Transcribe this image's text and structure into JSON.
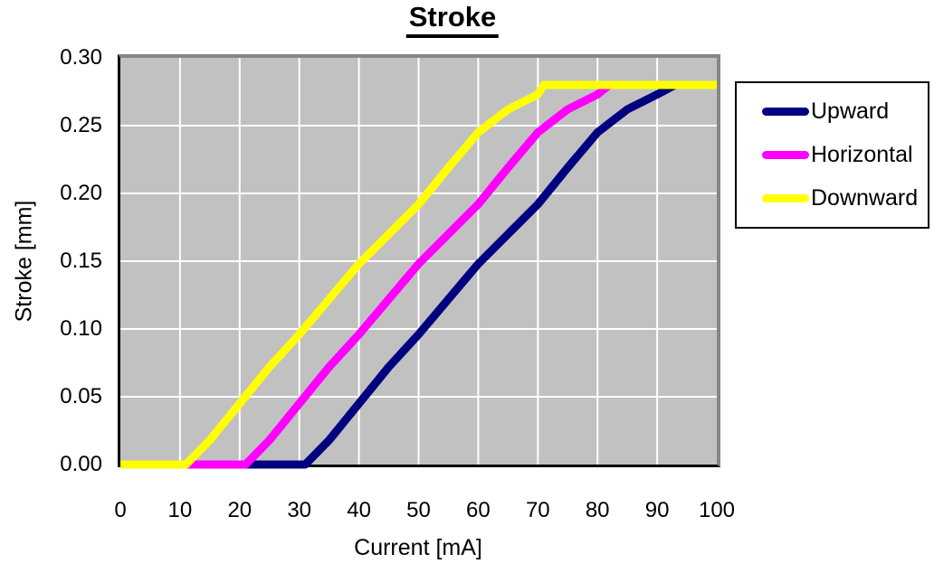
{
  "chart_data": {
    "type": "line",
    "title": "Stroke",
    "xlabel": "Current [mA]",
    "ylabel": "Stroke [mm]",
    "xlim": [
      0,
      100
    ],
    "ylim": [
      0,
      0.3
    ],
    "x_ticks": [
      0,
      10,
      20,
      30,
      40,
      50,
      60,
      70,
      80,
      90,
      100
    ],
    "x_tick_labels": [
      "0",
      "10",
      "20",
      "30",
      "40",
      "50",
      "60",
      "70",
      "80",
      "90",
      "100"
    ],
    "y_ticks": [
      0,
      0.05,
      0.1,
      0.15,
      0.2,
      0.25,
      0.3
    ],
    "y_tick_labels": [
      "0.00",
      "0.05",
      "0.10",
      "0.15",
      "0.20",
      "0.25",
      "0.30"
    ],
    "grid": true,
    "plot_bg": "#c1c1c1",
    "grid_color": "#ffffff",
    "axis_color": "#000000",
    "frame_color": "#868686",
    "line_width": 9,
    "legend_position": "right",
    "series": [
      {
        "name": "Upward",
        "color": "#000080",
        "points": [
          [
            0,
            0
          ],
          [
            31,
            0
          ],
          [
            35,
            0.018
          ],
          [
            40,
            0.045
          ],
          [
            45,
            0.072
          ],
          [
            50,
            0.096
          ],
          [
            55,
            0.122
          ],
          [
            60,
            0.148
          ],
          [
            65,
            0.17
          ],
          [
            70,
            0.192
          ],
          [
            75,
            0.219
          ],
          [
            80,
            0.245
          ],
          [
            85,
            0.262
          ],
          [
            90,
            0.273
          ],
          [
            93,
            0.28
          ],
          [
            100,
            0.28
          ]
        ]
      },
      {
        "name": "Horizontal",
        "color": "#ff00ff",
        "points": [
          [
            0,
            0
          ],
          [
            21,
            0
          ],
          [
            25,
            0.018
          ],
          [
            30,
            0.045
          ],
          [
            35,
            0.072
          ],
          [
            40,
            0.096
          ],
          [
            45,
            0.122
          ],
          [
            50,
            0.148
          ],
          [
            55,
            0.17
          ],
          [
            60,
            0.192
          ],
          [
            65,
            0.219
          ],
          [
            70,
            0.245
          ],
          [
            75,
            0.262
          ],
          [
            80,
            0.273
          ],
          [
            82,
            0.28
          ],
          [
            100,
            0.28
          ]
        ]
      },
      {
        "name": "Downward",
        "color": "#ffff00",
        "points": [
          [
            0,
            0
          ],
          [
            11,
            0
          ],
          [
            15,
            0.018
          ],
          [
            20,
            0.045
          ],
          [
            25,
            0.072
          ],
          [
            30,
            0.096
          ],
          [
            35,
            0.122
          ],
          [
            40,
            0.148
          ],
          [
            45,
            0.17
          ],
          [
            50,
            0.192
          ],
          [
            55,
            0.219
          ],
          [
            60,
            0.245
          ],
          [
            65,
            0.262
          ],
          [
            70,
            0.273
          ],
          [
            71,
            0.28
          ],
          [
            100,
            0.28
          ]
        ]
      }
    ]
  }
}
